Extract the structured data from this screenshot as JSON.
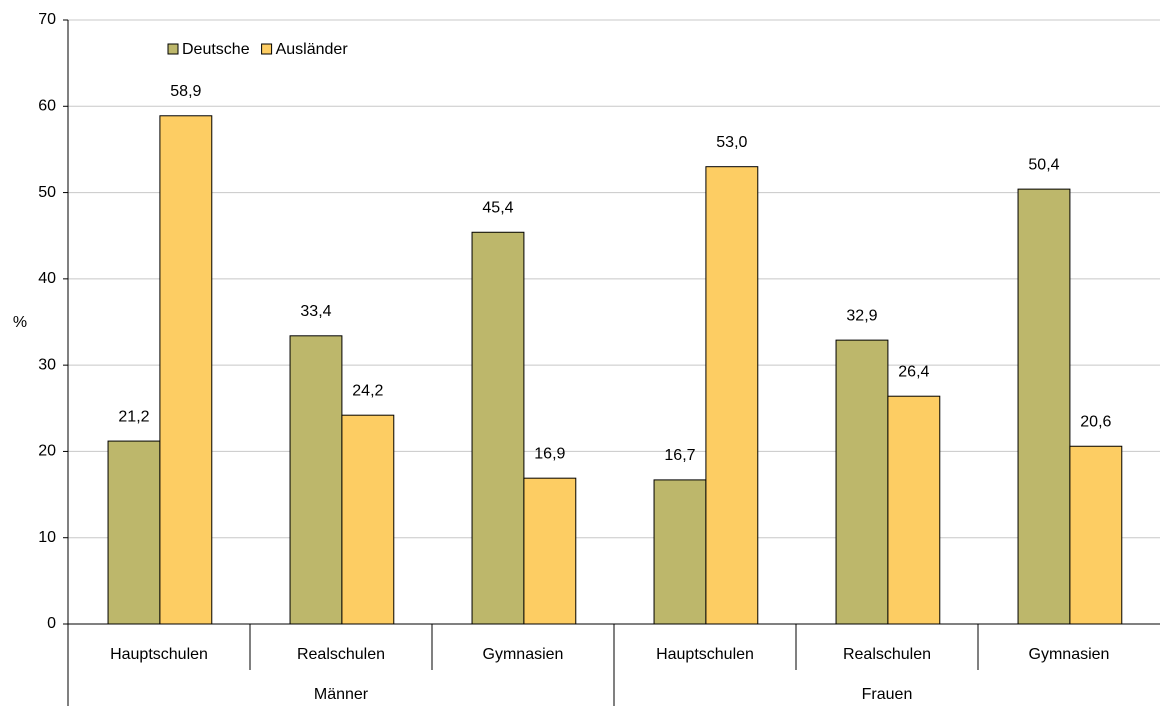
{
  "chart_data": {
    "type": "bar",
    "y_label": "%",
    "categories": [
      "Hauptschulen",
      "Realschulen",
      "Gymnasien",
      "Hauptschulen",
      "Realschulen",
      "Gymnasien"
    ],
    "groups": [
      "Männer",
      "Frauen"
    ],
    "series": [
      {
        "name": "Deutsche",
        "color": "#bdb76b",
        "values": [
          21.2,
          33.4,
          45.4,
          16.7,
          32.9,
          50.4
        ],
        "value_labels": [
          "21,2",
          "33,4",
          "45,4",
          "16,7",
          "32,9",
          "50,4"
        ]
      },
      {
        "name": "Ausländer",
        "color": "#fdcd63",
        "values": [
          58.9,
          24.2,
          16.9,
          53.0,
          26.4,
          20.6
        ],
        "value_labels": [
          "58,9",
          "24,2",
          "16,9",
          "53,0",
          "26,4",
          "20,6"
        ]
      }
    ],
    "ylim": [
      0,
      70
    ],
    "yticks": [
      0,
      10,
      20,
      30,
      40,
      50,
      60,
      70
    ],
    "grid": true,
    "legend": "top-left"
  }
}
